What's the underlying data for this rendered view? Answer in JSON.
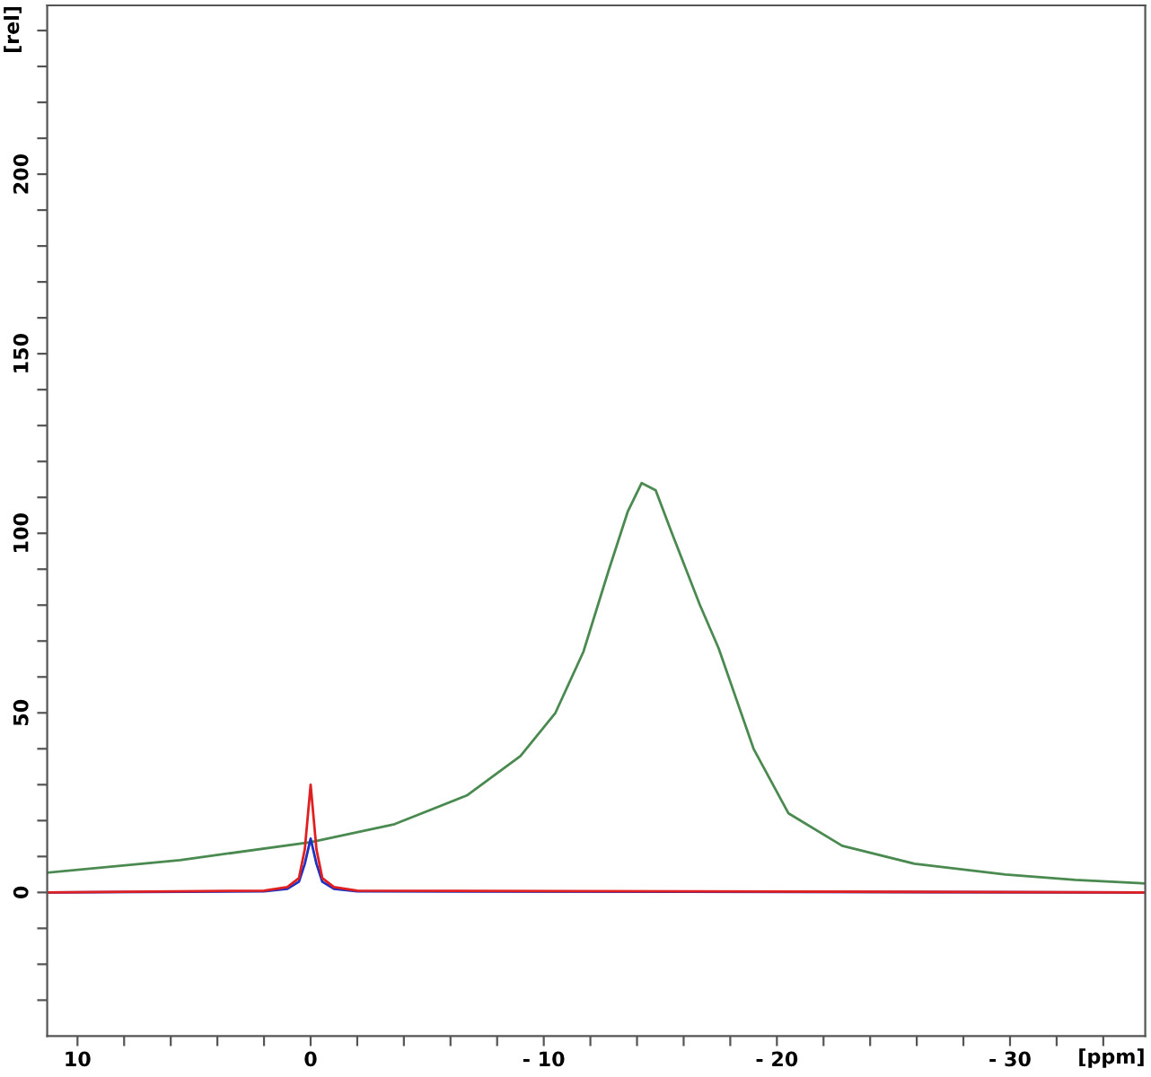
{
  "chart_data": {
    "type": "line",
    "xlabel": "[ppm]",
    "ylabel": "[rel]",
    "xlim": [
      11.3,
      -35.8
    ],
    "ylim": [
      -40,
      247
    ],
    "xticks": [
      10,
      {
        "value": 8,
        "label": null
      },
      {
        "value": 6,
        "label": null
      },
      {
        "value": 4,
        "label": null
      },
      {
        "value": 2,
        "label": null
      },
      0,
      {
        "value": -2,
        "label": null
      },
      {
        "value": -4,
        "label": null
      },
      {
        "value": -6,
        "label": null
      },
      {
        "value": -8,
        "label": null
      },
      {
        "value": -10,
        "label": "- 10"
      },
      {
        "value": -12,
        "label": null
      },
      {
        "value": -14,
        "label": null
      },
      {
        "value": -16,
        "label": null
      },
      {
        "value": -18,
        "label": null
      },
      {
        "value": -20,
        "label": "- 20"
      },
      {
        "value": -22,
        "label": null
      },
      {
        "value": -24,
        "label": null
      },
      {
        "value": -26,
        "label": null
      },
      {
        "value": -28,
        "label": null
      },
      {
        "value": -30,
        "label": "- 30"
      },
      {
        "value": -32,
        "label": null
      },
      {
        "value": -34,
        "label": null
      }
    ],
    "yticks": [
      {
        "value": -30,
        "label": null
      },
      {
        "value": -20,
        "label": null
      },
      {
        "value": -10,
        "label": null
      },
      0,
      {
        "value": 10,
        "label": null
      },
      {
        "value": 20,
        "label": null
      },
      {
        "value": 30,
        "label": null
      },
      {
        "value": 40,
        "label": null
      },
      50,
      {
        "value": 60,
        "label": null
      },
      {
        "value": 70,
        "label": null
      },
      {
        "value": 80,
        "label": null
      },
      {
        "value": 90,
        "label": null
      },
      100,
      {
        "value": 110,
        "label": null
      },
      {
        "value": 120,
        "label": null
      },
      {
        "value": 130,
        "label": null
      },
      {
        "value": 140,
        "label": null
      },
      150,
      {
        "value": 160,
        "label": null
      },
      {
        "value": 170,
        "label": null
      },
      {
        "value": 180,
        "label": null
      },
      {
        "value": 190,
        "label": null
      },
      200,
      {
        "value": 210,
        "label": null
      },
      {
        "value": 220,
        "label": null
      },
      {
        "value": 230,
        "label": null
      },
      {
        "value": 240,
        "label": null
      }
    ],
    "grid": false,
    "line_style": "solid",
    "series": [
      {
        "color": "#4a8a50",
        "x": [
          11.3,
          5.6,
          0,
          -3.6,
          -6.7,
          -9,
          -10.5,
          -11.7,
          -12.8,
          -13.6,
          -14.2,
          -14.8,
          -15.5,
          -16.7,
          -17.5,
          -19,
          -20.5,
          -22.8,
          -25.9,
          -29.8,
          -32.8,
          -35.8
        ],
        "values": [
          5.5,
          9,
          14,
          19,
          27,
          38,
          50,
          67,
          90,
          106,
          114,
          112,
          100,
          80,
          68,
          40,
          22,
          13,
          8,
          5,
          3.5,
          2.5
        ]
      },
      {
        "color": "#2030c0",
        "x": [
          11.3,
          2,
          1,
          0.5,
          0.25,
          0,
          -0.25,
          -0.5,
          -1,
          -2,
          -35.8
        ],
        "values": [
          0,
          0.3,
          1,
          3,
          8,
          15,
          8,
          3,
          1,
          0.3,
          0
        ]
      },
      {
        "color": "#e02020",
        "x": [
          11.3,
          2,
          1,
          0.5,
          0.25,
          0,
          -0.25,
          -0.5,
          -1,
          -2,
          -35.8
        ],
        "values": [
          0,
          0.5,
          1.5,
          4,
          12,
          30,
          12,
          4,
          1.5,
          0.5,
          0
        ]
      }
    ]
  }
}
